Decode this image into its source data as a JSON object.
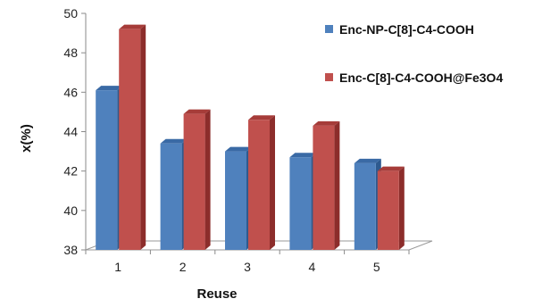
{
  "chart_data": {
    "type": "bar",
    "categories": [
      "1",
      "2",
      "3",
      "4",
      "5"
    ],
    "series": [
      {
        "name": "Enc-NP-C[8]-C4-COOH",
        "values": [
          46.1,
          43.4,
          43.0,
          42.7,
          42.4
        ]
      },
      {
        "name": "Enc-C[8]-C4-COOH@Fe3O4",
        "values": [
          49.2,
          44.9,
          44.6,
          44.3,
          42.0
        ]
      }
    ],
    "xlabel": "Reuse",
    "ylabel": "x(%)",
    "ylim": [
      38,
      50
    ],
    "yticks": [
      38,
      40,
      42,
      44,
      46,
      48,
      50
    ],
    "grid": false,
    "legend": "top-right",
    "colors": {
      "series1": {
        "front": "#4f81bd",
        "side": "#2e5a8f",
        "top": "#3a6aa5"
      },
      "series2": {
        "front": "#c0504d",
        "side": "#8c2d2b",
        "top": "#a63c39"
      }
    }
  }
}
